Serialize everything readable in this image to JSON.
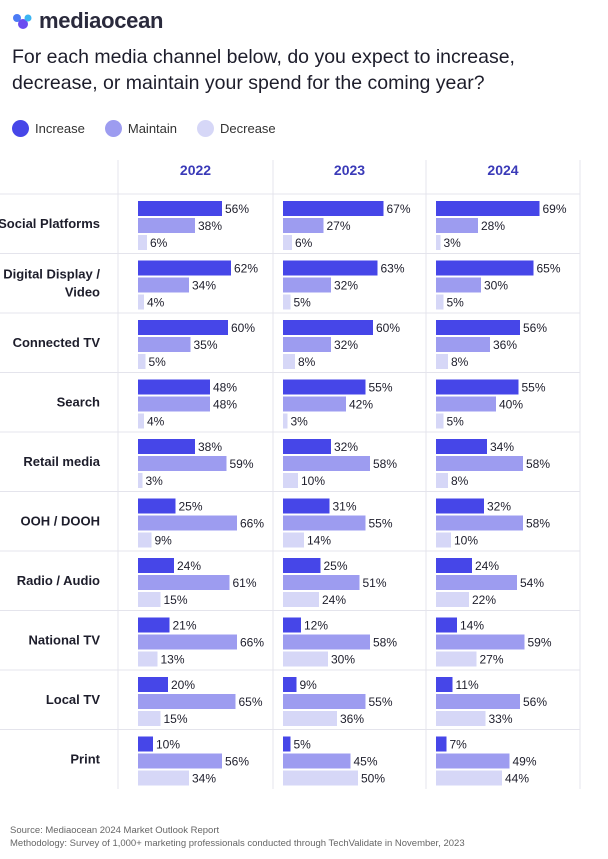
{
  "brand": {
    "name": "mediaocean"
  },
  "headline": "For each media channel below, do you expect to increase, decrease, or maintain your spend for the coming year?",
  "colors": {
    "increase": "#4646e8",
    "maintain": "#9d9cf0",
    "decrease": "#d6d7f7",
    "year_header": "#3a3ab8",
    "grid": "#e4e4ec"
  },
  "legend": [
    {
      "label": "Increase",
      "color": "#4646e8"
    },
    {
      "label": "Maintain",
      "color": "#9d9cf0"
    },
    {
      "label": "Decrease",
      "color": "#d6d7f7"
    }
  ],
  "chart_data": {
    "type": "bar",
    "orientation": "horizontal",
    "unit": "%",
    "years": [
      "2022",
      "2023",
      "2024"
    ],
    "series_names": [
      "Increase",
      "Maintain",
      "Decrease"
    ],
    "categories": [
      "Social Platforms",
      "Digital Display / Video",
      "Connected TV",
      "Search",
      "Retail media",
      "OOH / DOOH",
      "Radio / Audio",
      "National TV",
      "Local TV",
      "Print"
    ],
    "category_lines": [
      [
        "Social Platforms"
      ],
      [
        "Digital Display /",
        "Video"
      ],
      [
        "Connected TV"
      ],
      [
        "Search"
      ],
      [
        "Retail media"
      ],
      [
        "OOH / DOOH"
      ],
      [
        "Radio / Audio"
      ],
      [
        "National TV"
      ],
      [
        "Local TV"
      ],
      [
        "Print"
      ]
    ],
    "values": {
      "2022": {
        "Increase": [
          56,
          62,
          60,
          48,
          38,
          25,
          24,
          21,
          20,
          10
        ],
        "Maintain": [
          38,
          34,
          35,
          48,
          59,
          66,
          61,
          66,
          65,
          56
        ],
        "Decrease": [
          6,
          4,
          5,
          4,
          3,
          9,
          15,
          13,
          15,
          34
        ]
      },
      "2023": {
        "Increase": [
          67,
          63,
          60,
          55,
          32,
          31,
          25,
          12,
          9,
          5
        ],
        "Maintain": [
          27,
          32,
          32,
          42,
          58,
          55,
          51,
          58,
          55,
          45
        ],
        "Decrease": [
          6,
          5,
          8,
          3,
          10,
          14,
          24,
          30,
          36,
          50
        ]
      },
      "2024": {
        "Increase": [
          69,
          65,
          56,
          55,
          34,
          32,
          24,
          14,
          11,
          7
        ],
        "Maintain": [
          28,
          30,
          36,
          40,
          58,
          58,
          54,
          59,
          56,
          49
        ],
        "Decrease": [
          3,
          5,
          8,
          5,
          8,
          10,
          22,
          27,
          33,
          44
        ]
      }
    }
  },
  "footer": {
    "source": "Source: Mediaocean 2024 Market Outlook Report",
    "methodology": "Methodology: Survey of 1,000+ marketing professionals conducted through TechValidate in November, 2023"
  }
}
